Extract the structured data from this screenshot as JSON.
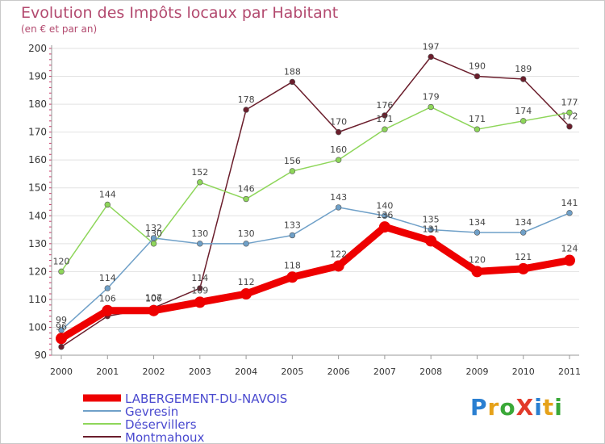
{
  "title": "Evolution des Impôts locaux par Habitant",
  "subtitle": "(en € et par an)",
  "logo": {
    "text": "ProXiti",
    "colors": [
      "#2a7fd1",
      "#e6a21a",
      "#3aa838",
      "#e23a2a",
      "#2a7fd1",
      "#e6a21a",
      "#3aa838"
    ]
  },
  "chart_data": {
    "type": "line",
    "title": "Evolution des Impôts locaux par Habitant",
    "subtitle": "(en € et par an)",
    "xlabel": "",
    "ylabel": "",
    "categories": [
      "2000",
      "2001",
      "2002",
      "2003",
      "2004",
      "2005",
      "2006",
      "2007",
      "2008",
      "2009",
      "2010",
      "2011"
    ],
    "ylim": [
      90,
      200
    ],
    "yticks": [
      90,
      100,
      110,
      120,
      130,
      140,
      150,
      160,
      170,
      180,
      190,
      200
    ],
    "grid": "horizontal",
    "series": [
      {
        "name": "Montmahoux",
        "color": "#6b1e2c",
        "values": [
          93,
          104,
          107,
          114,
          178,
          188,
          170,
          176,
          197,
          190,
          189,
          172
        ],
        "labels": [
          "",
          "",
          "107",
          "114",
          "178",
          "188",
          "170",
          "176",
          "197",
          "190",
          "189",
          "172"
        ]
      },
      {
        "name": "Déservillers",
        "color": "#8ed65a",
        "values": [
          120,
          144,
          130,
          152,
          146,
          156,
          160,
          171,
          179,
          171,
          174,
          177
        ],
        "labels": [
          "120",
          "144",
          "130",
          "152",
          "146",
          "156",
          "160",
          "171",
          "179",
          "171",
          "174",
          "177"
        ]
      },
      {
        "name": "Gevresin",
        "color": "#6fa0c8",
        "values": [
          99,
          114,
          132,
          130,
          130,
          133,
          143,
          140,
          135,
          134,
          134,
          141
        ],
        "labels": [
          "99",
          "114",
          "132",
          "130",
          "130",
          "133",
          "143",
          "140",
          "135",
          "134",
          "134",
          "141"
        ]
      },
      {
        "name": "LABERGEMENT-DU-NAVOIS",
        "color": "#ee0000",
        "values": [
          96,
          106,
          106,
          109,
          112,
          118,
          122,
          136,
          131,
          120,
          121,
          124
        ],
        "labels": [
          "96",
          "106",
          "106",
          "109",
          "112",
          "118",
          "122",
          "136",
          "131",
          "120",
          "121",
          "124"
        ]
      }
    ],
    "legend": [
      "LABERGEMENT-DU-NAVOIS",
      "Gevresin",
      "Déservillers",
      "Montmahoux"
    ],
    "legend_position": "bottom-left"
  }
}
